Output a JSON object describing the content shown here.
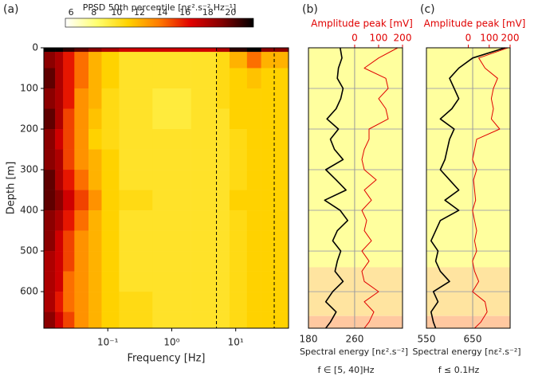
{
  "chart_data": [
    {
      "type": "heatmap",
      "panel": "(a)",
      "colorbar_title": "PPSD 50th percentile [nε².s⁻².Hz⁻¹]",
      "clim": [
        5.5,
        22
      ],
      "colorbar_ticks": [
        6,
        8,
        10,
        12,
        14,
        16,
        18,
        20
      ],
      "colormap": [
        "#ffffff",
        "#ffff70",
        "#ffd200",
        "#ff7a00",
        "#e00000",
        "#820000",
        "#000000"
      ],
      "xlabel": "Frequency [Hz]",
      "xscale": "log",
      "xlim": [
        0.01,
        67
      ],
      "xticks": [
        {
          "value": 0.1,
          "label": "10⁻¹"
        },
        {
          "value": 1,
          "label": "10⁰"
        },
        {
          "value": 10,
          "label": "10¹"
        }
      ],
      "ylabel": "Depth [m]",
      "ylim": [
        0,
        690
      ],
      "yticks": [
        0,
        100,
        200,
        300,
        400,
        500,
        600
      ],
      "vlines": [
        5,
        40
      ],
      "x_edges": [
        0.01,
        0.015,
        0.02,
        0.03,
        0.05,
        0.08,
        0.15,
        0.5,
        2,
        5,
        8,
        15,
        25,
        67
      ],
      "y_edges": [
        0,
        10,
        50,
        100,
        150,
        200,
        250,
        300,
        350,
        400,
        450,
        500,
        550,
        600,
        650,
        690
      ],
      "values": [
        [
          22,
          22,
          21,
          20,
          19,
          18,
          17,
          17,
          17,
          18,
          21,
          22,
          19
        ],
        [
          19,
          18,
          16,
          14,
          12,
          11,
          10,
          10,
          10,
          10.5,
          12,
          14,
          12
        ],
        [
          20,
          18,
          16,
          14,
          12,
          11,
          10,
          10,
          10,
          10.5,
          11,
          11.5,
          11
        ],
        [
          19,
          18,
          16,
          13,
          12,
          10.5,
          10,
          9.5,
          10,
          10.5,
          11,
          11,
          11
        ],
        [
          20,
          18,
          15,
          13,
          11.5,
          10.5,
          10,
          9.5,
          10,
          10,
          11,
          11,
          11
        ],
        [
          19,
          17,
          15,
          13,
          11,
          10.5,
          10,
          10,
          10,
          10,
          10.5,
          11,
          11
        ],
        [
          19,
          18,
          15,
          13,
          12,
          11,
          10,
          10,
          10,
          10,
          10.5,
          11,
          11
        ],
        [
          20,
          18,
          16,
          14,
          12,
          11,
          10,
          10,
          10,
          10,
          10.5,
          11,
          11
        ],
        [
          20,
          19,
          17,
          15,
          13,
          11,
          10.5,
          10,
          10,
          10,
          11,
          11,
          11
        ],
        [
          19,
          18,
          16,
          14,
          12,
          11,
          10,
          10,
          10,
          10,
          10.5,
          11,
          11
        ],
        [
          19,
          17,
          15,
          13,
          12,
          11,
          10,
          10,
          10,
          10,
          10.5,
          11,
          11
        ],
        [
          18,
          17,
          15,
          13,
          12,
          11,
          10,
          10,
          10,
          10,
          10.5,
          11,
          11
        ],
        [
          18,
          17,
          14,
          13,
          12,
          11,
          10,
          10,
          10,
          10,
          10.5,
          11,
          11
        ],
        [
          18,
          16,
          14,
          13,
          12,
          11,
          10.5,
          10,
          10,
          10,
          10.5,
          11,
          11
        ],
        [
          19,
          17,
          15,
          13,
          12,
          11,
          10.5,
          10,
          10,
          10,
          10.5,
          11,
          11
        ]
      ]
    },
    {
      "type": "line",
      "panel": "(b)",
      "xlabel": "Spectral energy [nε².s⁻²]",
      "x2label": "Amplitude peak [mV]",
      "note": "f ∈ [5, 40]Hz",
      "xlim": [
        180,
        343
      ],
      "xticks": [
        180,
        260
      ],
      "x2lim": [
        -193,
        200
      ],
      "x2ticks": [
        0,
        100,
        200
      ],
      "ylim": [
        0,
        690
      ],
      "yticks": [
        100,
        200,
        300,
        400,
        500,
        600
      ],
      "grid": true,
      "bands": [
        {
          "from": 0,
          "to": 540,
          "color": "#ffff9e"
        },
        {
          "from": 540,
          "to": 660,
          "color": "#ffe4a0"
        },
        {
          "from": 660,
          "to": 690,
          "color": "#ffc8a0"
        }
      ],
      "y": [
        0,
        25,
        50,
        75,
        100,
        125,
        150,
        175,
        200,
        225,
        250,
        275,
        300,
        325,
        350,
        375,
        400,
        425,
        450,
        475,
        500,
        525,
        550,
        575,
        600,
        625,
        650,
        675,
        690
      ],
      "series": [
        {
          "name": "Spectral energy",
          "color": "#000000",
          "values": [
            235,
            238,
            232,
            230,
            240,
            236,
            228,
            212,
            232,
            218,
            225,
            240,
            210,
            228,
            245,
            208,
            235,
            248,
            230,
            222,
            236,
            230,
            226,
            240,
            222,
            210,
            228,
            218,
            210
          ]
        },
        {
          "name": "Amplitude peak",
          "color": "#e00000",
          "axis": "x2",
          "values": [
            180,
            100,
            40,
            130,
            140,
            100,
            130,
            140,
            60,
            60,
            40,
            30,
            40,
            90,
            40,
            70,
            30,
            50,
            40,
            70,
            30,
            60,
            30,
            40,
            100,
            40,
            80,
            60,
            40
          ]
        }
      ]
    },
    {
      "type": "line",
      "panel": "(c)",
      "xlabel": "Spectral energy [nε².s⁻²]",
      "x2label": "Amplitude peak [mV]",
      "note": "f ≤ 0.1Hz",
      "xlim": [
        550,
        731
      ],
      "xticks": [
        550,
        650
      ],
      "x2lim": [
        -200,
        200
      ],
      "x2ticks": [
        0,
        100,
        200
      ],
      "ylim": [
        0,
        690
      ],
      "yticks": [
        100,
        200,
        300,
        400,
        500,
        600
      ],
      "grid": true,
      "bands": [
        {
          "from": 0,
          "to": 540,
          "color": "#ffff9e"
        },
        {
          "from": 540,
          "to": 660,
          "color": "#ffe4a0"
        },
        {
          "from": 660,
          "to": 690,
          "color": "#ffc8a0"
        }
      ],
      "y": [
        0,
        25,
        50,
        75,
        100,
        125,
        150,
        175,
        200,
        225,
        250,
        275,
        300,
        325,
        350,
        375,
        400,
        425,
        450,
        475,
        500,
        525,
        550,
        575,
        600,
        625,
        650,
        675,
        690
      ],
      "series": [
        {
          "name": "Spectral energy",
          "color": "#000000",
          "values": [
            720,
            650,
            620,
            600,
            610,
            620,
            605,
            580,
            610,
            600,
            595,
            590,
            580,
            600,
            620,
            590,
            620,
            580,
            570,
            560,
            575,
            570,
            580,
            600,
            565,
            575,
            560,
            565,
            570
          ]
        },
        {
          "name": "Amplitude peak",
          "color": "#e00000",
          "axis": "x2",
          "values": [
            190,
            50,
            80,
            140,
            120,
            110,
            120,
            110,
            150,
            40,
            30,
            20,
            40,
            25,
            30,
            35,
            20,
            30,
            40,
            30,
            40,
            20,
            30,
            50,
            20,
            80,
            90,
            60,
            30
          ]
        }
      ]
    }
  ]
}
